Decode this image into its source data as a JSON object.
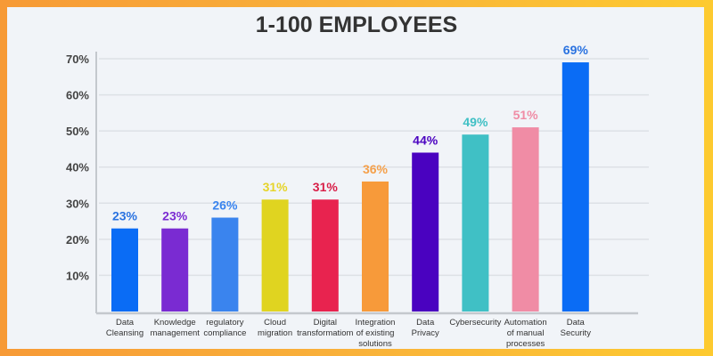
{
  "chart_data": {
    "type": "bar",
    "title": "1-100 EMPLOYEES",
    "xlabel": "",
    "ylabel": "",
    "ylim": [
      0,
      70
    ],
    "yticks": [
      "10%",
      "20%",
      "30%",
      "40%",
      "50%",
      "60%",
      "70%"
    ],
    "ytick_values": [
      10,
      20,
      30,
      40,
      50,
      60,
      70
    ],
    "grid": true,
    "categories": [
      [
        "Data",
        "Cleansing"
      ],
      [
        "Knowledge",
        "management"
      ],
      [
        "regulatory",
        "compliance"
      ],
      [
        "Cloud",
        "migration"
      ],
      [
        "Digital",
        "transformatiom"
      ],
      [
        "Integration",
        "of existing",
        "solutions"
      ],
      [
        "Data",
        "Privacy"
      ],
      [
        "Cybersecurity"
      ],
      [
        "Automation",
        "of manual",
        "processes"
      ],
      [
        "Data",
        "Security"
      ]
    ],
    "values": [
      23,
      23,
      26,
      31,
      31,
      36,
      44,
      49,
      51,
      69
    ],
    "data_labels": [
      "23%",
      "23%",
      "26%",
      "31%",
      "31%",
      "36%",
      "44%",
      "49%",
      "51%",
      "69%"
    ],
    "colors": [
      "#0a6cf5",
      "#7a2bd2",
      "#3a84ee",
      "#e0d420",
      "#e8234f",
      "#f79a3a",
      "#4a02c0",
      "#40c0c5",
      "#f08ca5",
      "#0a6cf5"
    ],
    "label_colors": [
      "#2a72e0",
      "#7a2bd2",
      "#3a84ee",
      "#e6d42a",
      "#d81f48",
      "#f5a04a",
      "#4a02c0",
      "#40c0c5",
      "#f08ca5",
      "#2a72e0"
    ]
  }
}
